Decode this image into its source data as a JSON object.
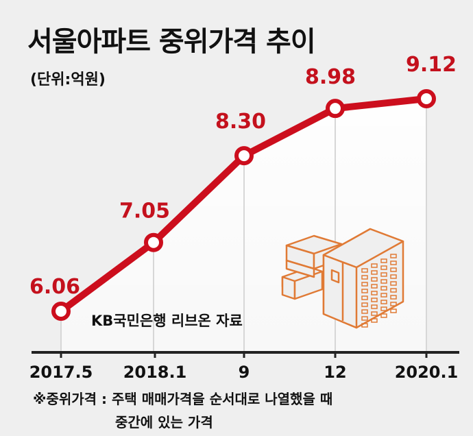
{
  "title": "서울아파트 중위가격 추이",
  "unit_label": "(단위:억원)",
  "source": "KB국민은행 리브온 자료",
  "footnote": {
    "line1": "※중위가격 : 주택 매매가격을 순서대로 나열했을 때",
    "line2": "중간에 있는 가격"
  },
  "colors": {
    "line": "#cc0e1d",
    "label": "#c4111d",
    "icon": "#e07a35",
    "shade": "#ffffff",
    "background": "#efefef",
    "axis": "#222222"
  },
  "chart_data": {
    "type": "line",
    "categories": [
      "2017.5",
      "2018.1",
      "9",
      "12",
      "2020.1"
    ],
    "series": [
      {
        "values": [
          6.06,
          7.05,
          8.3,
          8.98,
          9.12
        ]
      }
    ],
    "value_labels": [
      "6.06",
      "7.05",
      "8.30",
      "8.98",
      "9.12"
    ],
    "ylim": [
      5.8,
      9.6
    ],
    "grid": false,
    "legend": "none"
  }
}
